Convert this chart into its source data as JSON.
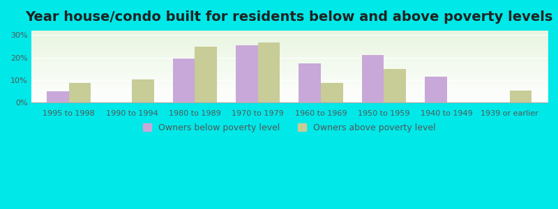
{
  "title": "Year house/condo built for residents below and above poverty levels",
  "categories": [
    "1995 to 1998",
    "1990 to 1994",
    "1980 to 1989",
    "1970 to 1979",
    "1960 to 1969",
    "1950 to 1959",
    "1940 to 1949",
    "1939 or earlier"
  ],
  "below_poverty": [
    5.0,
    0.0,
    19.5,
    25.5,
    17.5,
    21.0,
    11.5,
    0.0
  ],
  "above_poverty": [
    8.8,
    10.3,
    24.8,
    26.6,
    8.7,
    15.0,
    0.0,
    5.2
  ],
  "below_color": "#c8a8d8",
  "above_color": "#c8cc96",
  "background_color": "#00e8e8",
  "plot_bg_start": "#e8f5e0",
  "plot_bg_end": "#ffffff",
  "ylabel_ticks": [
    "0%",
    "10%",
    "20%",
    "30%"
  ],
  "ytick_vals": [
    0,
    10,
    20,
    30
  ],
  "ylim": [
    0,
    32
  ],
  "bar_width": 0.35,
  "legend_below_label": "Owners below poverty level",
  "legend_above_label": "Owners above poverty level",
  "title_fontsize": 14,
  "tick_fontsize": 8,
  "legend_fontsize": 9
}
